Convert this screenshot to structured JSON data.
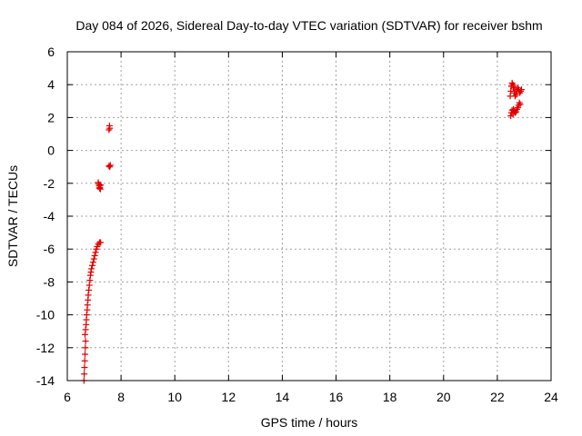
{
  "chart_data": {
    "type": "scatter",
    "title": "Day 084 of 2026, Sidereal Day-to-day VTEC variation (SDTVAR) for receiver bshm",
    "xlabel": "GPS time / hours",
    "ylabel": "SDTVAR / TECUs",
    "xlim": [
      6,
      24
    ],
    "ylim": [
      -14,
      6
    ],
    "xticks": [
      6,
      8,
      10,
      12,
      14,
      16,
      18,
      20,
      22,
      24
    ],
    "yticks": [
      6,
      4,
      2,
      0,
      -2,
      -4,
      -6,
      -8,
      -10,
      -12,
      -14
    ],
    "grid": true,
    "marker": "plus",
    "color": "#e00000",
    "series": [
      {
        "name": "SDTVAR",
        "points": [
          [
            6.62,
            -14.0
          ],
          [
            6.63,
            -13.6
          ],
          [
            6.64,
            -13.2
          ],
          [
            6.65,
            -12.8
          ],
          [
            6.66,
            -12.4
          ],
          [
            6.67,
            -12.0
          ],
          [
            6.68,
            -11.6
          ],
          [
            6.66,
            -11.2
          ],
          [
            6.68,
            -10.9
          ],
          [
            6.7,
            -10.6
          ],
          [
            6.71,
            -10.3
          ],
          [
            6.72,
            -10.0
          ],
          [
            6.74,
            -9.7
          ],
          [
            6.75,
            -9.4
          ],
          [
            6.77,
            -9.1
          ],
          [
            6.78,
            -8.8
          ],
          [
            6.8,
            -8.5
          ],
          [
            6.82,
            -8.2
          ],
          [
            6.84,
            -7.9
          ],
          [
            6.86,
            -7.6
          ],
          [
            6.88,
            -7.4
          ],
          [
            6.9,
            -7.2
          ],
          [
            6.93,
            -7.0
          ],
          [
            6.96,
            -6.8
          ],
          [
            6.99,
            -6.6
          ],
          [
            7.02,
            -6.4
          ],
          [
            7.05,
            -6.2
          ],
          [
            7.08,
            -6.0
          ],
          [
            7.11,
            -5.85
          ],
          [
            7.15,
            -5.7
          ],
          [
            7.2,
            -5.6
          ],
          [
            7.24,
            -5.6
          ],
          [
            7.15,
            -1.95
          ],
          [
            7.17,
            -2.05
          ],
          [
            7.19,
            -2.15
          ],
          [
            7.21,
            -2.25
          ],
          [
            7.23,
            -2.35
          ],
          [
            7.24,
            -2.1
          ],
          [
            7.2,
            -2.3
          ],
          [
            7.55,
            -0.95
          ],
          [
            7.58,
            -1.0
          ],
          [
            7.6,
            -0.9
          ],
          [
            7.55,
            1.25
          ],
          [
            7.58,
            1.35
          ],
          [
            7.57,
            1.5
          ],
          [
            22.5,
            2.1
          ],
          [
            22.52,
            2.3
          ],
          [
            22.55,
            2.45
          ],
          [
            22.6,
            2.5
          ],
          [
            22.63,
            2.4
          ],
          [
            22.66,
            2.3
          ],
          [
            22.7,
            2.35
          ],
          [
            22.73,
            2.5
          ],
          [
            22.76,
            2.6
          ],
          [
            22.79,
            2.75
          ],
          [
            22.82,
            2.9
          ],
          [
            22.85,
            2.8
          ],
          [
            22.58,
            2.2
          ],
          [
            22.48,
            3.3
          ],
          [
            22.5,
            3.6
          ],
          [
            22.52,
            3.9
          ],
          [
            22.55,
            4.1
          ],
          [
            22.58,
            4.0
          ],
          [
            22.6,
            3.8
          ],
          [
            22.63,
            3.5
          ],
          [
            22.66,
            3.3
          ],
          [
            22.7,
            3.4
          ],
          [
            22.73,
            3.6
          ],
          [
            22.76,
            3.8
          ],
          [
            22.8,
            3.7
          ],
          [
            22.84,
            3.5
          ],
          [
            22.87,
            3.6
          ],
          [
            22.9,
            3.7
          ],
          [
            22.62,
            3.9
          ],
          [
            22.68,
            3.7
          ]
        ]
      }
    ]
  }
}
